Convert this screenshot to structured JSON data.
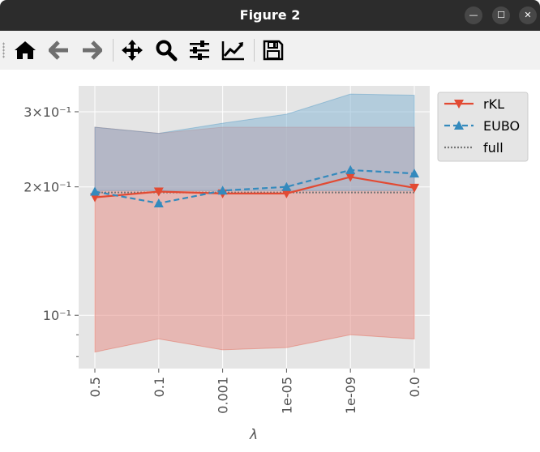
{
  "window": {
    "title": "Figure 2",
    "buttons": [
      {
        "name": "minimize-button",
        "glyph": "—"
      },
      {
        "name": "maximize-button",
        "glyph": "☐"
      },
      {
        "name": "close-button",
        "glyph": "✕"
      }
    ]
  },
  "toolbar": {
    "tools": [
      {
        "name": "home",
        "icon": "home-icon"
      },
      {
        "name": "back",
        "icon": "arrow-left-icon"
      },
      {
        "name": "forward",
        "icon": "arrow-right-icon"
      },
      {
        "name": "pan",
        "icon": "move-icon"
      },
      {
        "name": "zoom",
        "icon": "magnifier-icon"
      },
      {
        "name": "subplots",
        "icon": "sliders-icon"
      },
      {
        "name": "edit-axis",
        "icon": "line-chart-icon"
      },
      {
        "name": "save",
        "icon": "floppy-disk-icon"
      }
    ]
  },
  "chart_data": {
    "type": "line",
    "xlabel": "λ",
    "ylabel": "",
    "categories": [
      "0.5",
      "0.1",
      "0.001",
      "1e-05",
      "1e-09",
      "0.0"
    ],
    "y_scale": "log",
    "ylim": [
      0.075,
      0.345
    ],
    "y_ticks": [
      {
        "value": 0.1,
        "label": "10⁻¹"
      },
      {
        "value": 0.2,
        "label": "2×10⁻¹"
      },
      {
        "value": 0.3,
        "label": "3×10⁻¹"
      }
    ],
    "grid": true,
    "legend_position": "top-right",
    "series": [
      {
        "name": "rKL",
        "values": [
          0.189,
          0.195,
          0.193,
          0.193,
          0.211,
          0.199
        ],
        "color": "#e24a33",
        "marker": "triangle-down",
        "linestyle": "solid",
        "band_lower": [
          0.082,
          0.088,
          0.083,
          0.084,
          0.09,
          0.088
        ],
        "band_upper": [
          0.276,
          0.267,
          0.276,
          0.276,
          0.276,
          0.276
        ]
      },
      {
        "name": "EUBO",
        "values": [
          0.195,
          0.183,
          0.196,
          0.2,
          0.219,
          0.215
        ],
        "color": "#348abd",
        "marker": "triangle-up",
        "linestyle": "dashed",
        "band_lower": [
          0.196,
          0.196,
          0.196,
          0.196,
          0.196,
          0.196
        ],
        "band_upper": [
          0.276,
          0.267,
          0.282,
          0.296,
          0.33,
          0.328
        ]
      },
      {
        "name": "full",
        "values": [
          0.194,
          0.194,
          0.194,
          0.194,
          0.194,
          0.194
        ],
        "color": "#777777",
        "marker": "none",
        "linestyle": "dotted"
      }
    ]
  }
}
